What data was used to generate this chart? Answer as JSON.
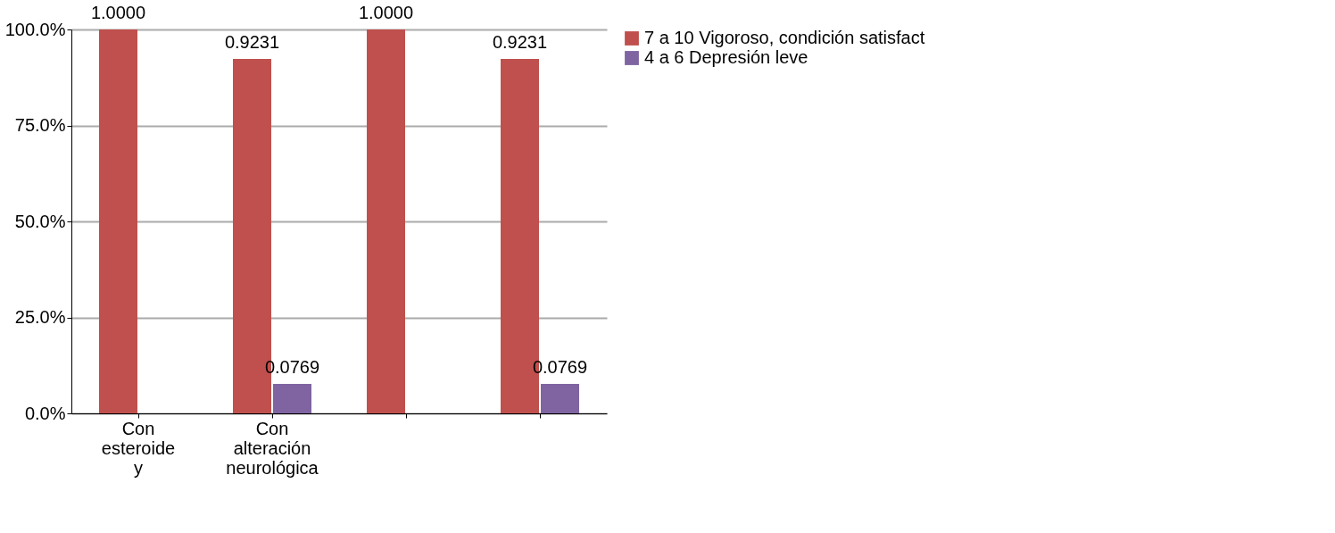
{
  "chart_data": {
    "type": "bar",
    "categories": [
      "Con esteroide y",
      "Con alteración neurológica",
      null,
      null
    ],
    "series": [
      {
        "name": "7 a 10 Vigoroso, condición satisfact",
        "color": "#c0504d",
        "values": [
          1,
          0.9231,
          1,
          0.9231
        ],
        "value_labels": [
          "1.0000",
          "0.9231",
          "1.0000",
          "0.9231"
        ]
      },
      {
        "name": "4 a 6 Depresión leve",
        "color": "#8064a2",
        "values": [
          null,
          0.0769,
          null,
          0.0769
        ],
        "value_labels": [
          null,
          "0.0769",
          null,
          "0.0769"
        ]
      }
    ],
    "ylim": [
      0,
      1
    ],
    "yticks": [
      {
        "value": 0,
        "label": "0.0%"
      },
      {
        "value": 0.25,
        "label": "25.0%"
      },
      {
        "value": 0.5,
        "label": "50.0%"
      },
      {
        "value": 0.75,
        "label": "75.0%"
      },
      {
        "value": 1,
        "label": "100.0%"
      }
    ],
    "grid": "y",
    "legend": "right"
  }
}
